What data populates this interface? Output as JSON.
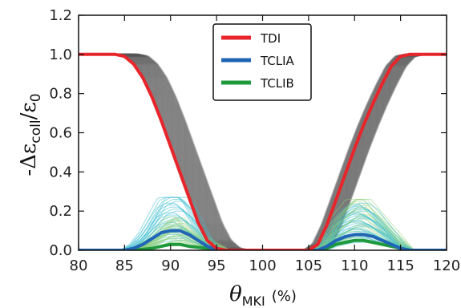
{
  "chart_data": {
    "type": "line",
    "title": "",
    "xlabel_main": "θ",
    "xlabel_sub": "MKI",
    "xlabel_unit": "(%)",
    "ylabel_prefix": "-Δε",
    "ylabel_sub": "coll",
    "ylabel_mid": "/ε",
    "ylabel_sub2": "0",
    "xlim": [
      80,
      120
    ],
    "ylim": [
      0.0,
      1.2
    ],
    "xticks": [
      "80",
      "85",
      "90",
      "95",
      "100",
      "105",
      "110",
      "115",
      "120"
    ],
    "yticks": [
      "0.0",
      "0.2",
      "0.4",
      "0.6",
      "0.8",
      "1.0",
      "1.2"
    ],
    "grid": false,
    "legend_position": "top-center",
    "series": [
      {
        "name": "TDI",
        "color": "#e8252b",
        "x": [
          80,
          84,
          85,
          86,
          87,
          88,
          89,
          90,
          91,
          92,
          93,
          94,
          95,
          96,
          104,
          105,
          106,
          107,
          108,
          109,
          110,
          111,
          112,
          113,
          114,
          115,
          116,
          120
        ],
        "y": [
          1.0,
          1.0,
          0.99,
          0.95,
          0.88,
          0.78,
          0.66,
          0.53,
          0.4,
          0.27,
          0.14,
          0.05,
          0.01,
          0.0,
          0.0,
          0.0,
          0.03,
          0.13,
          0.26,
          0.39,
          0.52,
          0.64,
          0.75,
          0.85,
          0.94,
          0.99,
          1.0,
          1.0
        ]
      },
      {
        "name": "TCLIA",
        "color": "#2066b4",
        "x": [
          80,
          84,
          85,
          86,
          87,
          88,
          89,
          90,
          91,
          92,
          93,
          94,
          95,
          96,
          104,
          105,
          106,
          107,
          108,
          109,
          110,
          111,
          112,
          113,
          114,
          115,
          116,
          120
        ],
        "y": [
          0.0,
          0.0,
          0.0,
          0.01,
          0.03,
          0.06,
          0.09,
          0.1,
          0.1,
          0.08,
          0.05,
          0.02,
          0.0,
          0.0,
          0.0,
          0.0,
          0.0,
          0.02,
          0.05,
          0.07,
          0.08,
          0.08,
          0.07,
          0.05,
          0.03,
          0.01,
          0.0,
          0.0
        ]
      },
      {
        "name": "TCLIB",
        "color": "#1e9a3c",
        "x": [
          80,
          84,
          86,
          88,
          89,
          90,
          91,
          92,
          94,
          96,
          104,
          106,
          107,
          108,
          109,
          110,
          111,
          112,
          113,
          114,
          116,
          120
        ],
        "y": [
          0.0,
          0.0,
          0.0,
          0.01,
          0.02,
          0.03,
          0.03,
          0.02,
          0.01,
          0.0,
          0.0,
          0.0,
          0.01,
          0.03,
          0.04,
          0.05,
          0.05,
          0.04,
          0.03,
          0.02,
          0.0,
          0.0
        ]
      }
    ],
    "bands": {
      "gray": "#555555",
      "cyan": "#3fbfd2",
      "lightgreen": "#8fd17a"
    }
  },
  "legend": {
    "items": [
      {
        "label": "TDI",
        "color": "#e8252b"
      },
      {
        "label": "TCLIA",
        "color": "#2066b4"
      },
      {
        "label": "TCLIB",
        "color": "#1e9a3c"
      }
    ]
  }
}
